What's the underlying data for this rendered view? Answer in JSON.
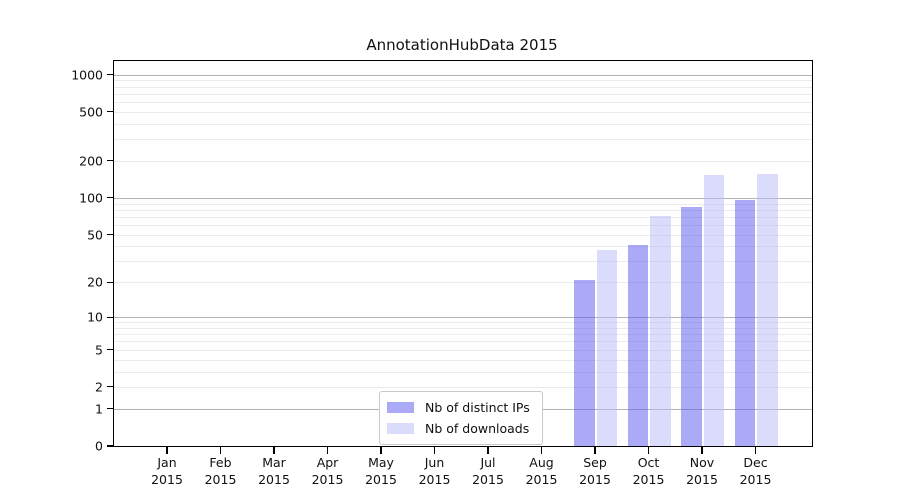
{
  "chart_data": {
    "type": "bar",
    "title": "AnnotationHubData 2015",
    "categories": [
      "Jan",
      "Feb",
      "Mar",
      "Apr",
      "May",
      "Jun",
      "Jul",
      "Aug",
      "Sep",
      "Oct",
      "Nov",
      "Dec"
    ],
    "category_year": "2015",
    "series": [
      {
        "name": "Nb of distinct IPs",
        "color": "rgba(85,85,240,0.5)",
        "values": [
          0,
          0,
          0,
          0,
          0,
          0,
          0,
          0,
          21,
          41,
          85,
          96
        ]
      },
      {
        "name": "Nb of downloads",
        "color": "rgba(183,183,248,0.5)",
        "values": [
          0,
          0,
          0,
          0,
          0,
          0,
          0,
          0,
          37,
          71,
          154,
          156
        ]
      }
    ],
    "y_axis": {
      "scale": "log10(value+1)",
      "tick_values": [
        0,
        1,
        2,
        5,
        10,
        20,
        50,
        100,
        200,
        500,
        1000
      ],
      "major_gridline_values": [
        1,
        10,
        100,
        1000
      ],
      "ylim": [
        0,
        1000
      ]
    },
    "xlabel": "",
    "ylabel": "",
    "grid": true,
    "legend_position": "inside-bottom-center"
  }
}
